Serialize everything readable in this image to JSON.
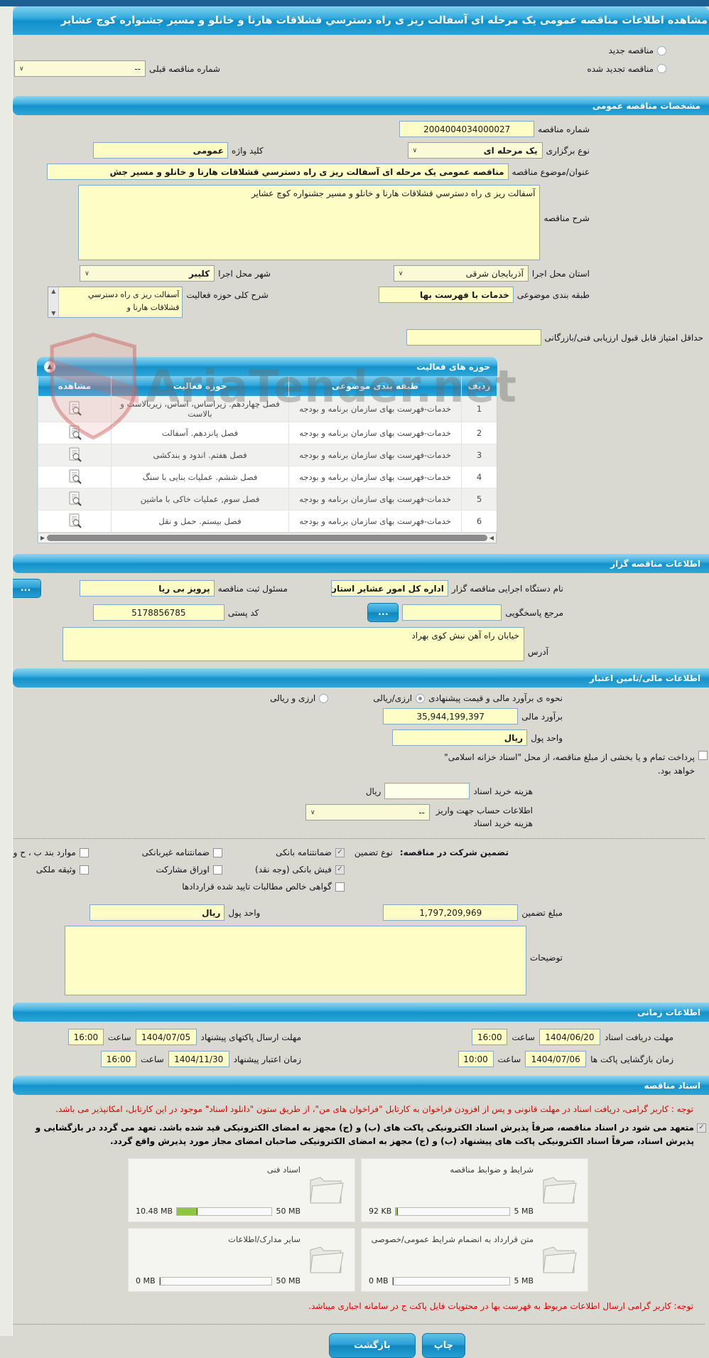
{
  "window": {
    "title": "مشاهده اطلاعات مناقصه عمومی یک مرحله ای آسفالت ریز ی راه دسترسي قشلاقات هارنا و خانلو و مسیر جشنواره کوچ عشایر"
  },
  "watermark": "AriaTender.net",
  "top_options": {
    "new_label": "مناقصه جدید",
    "renewed_label": "مناقصه تجدید شده",
    "previous_number_label": "شماره مناقصه قبلی",
    "previous_number_value": "--"
  },
  "general": {
    "header": "مشخصات مناقصه عمومی",
    "number_label": "شماره مناقصه",
    "number_value": "2004004034000027",
    "type_label": "نوع برگزاری",
    "type_value": "یک مرحله ای",
    "keyword_label": "کلید واژه",
    "keyword_value": "عمومی",
    "subject_label": "عنوان/موضوع مناقصه",
    "subject_value": "مناقصه عمومی یک مرحله ای آسفالت ریز ی راه دسترسي قشلاقات هارنا و خانلو و مسیر جش",
    "desc_label": "شرح مناقصه",
    "desc_value": "آسفالت ریز ی راه دسترسي قشلاقات هارنا و خانلو و مسیر جشنواره کوچ عشایر",
    "province_label": "استان محل اجرا",
    "province_value": "آذربایجان شرقی",
    "city_label": "شهر محل اجرا",
    "city_value": "کلیبر",
    "category_label": "طبقه بندی موضوعی",
    "category_value": "خدمات با فهرست بها",
    "scope_label": "شرح کلی حوزه فعالیت",
    "scope_value": "آسفالت ریز ی راه دسترسي قشلاقات هارنا و",
    "min_score_label": "حداقل امتیاز قابل قبول ارزیابی فنی/بازرگانی"
  },
  "activity_table": {
    "header": "حوزه های فعالیت",
    "columns": [
      "ردیف",
      "طبقه بندی موضوعی",
      "حوزه فعالیت",
      "مشاهده"
    ],
    "rows": [
      {
        "index": "1",
        "category": "خدمات-فهرست بهای سازمان برنامه و بودجه",
        "activity": "فصل چهاردهم. زیراساس، اساس، زیربالاست و بالاست"
      },
      {
        "index": "2",
        "category": "خدمات-فهرست بهای سازمان برنامه و بودجه",
        "activity": "فصل پانزدهم. آسفالت"
      },
      {
        "index": "3",
        "category": "خدمات-فهرست بهای سازمان برنامه و بودجه",
        "activity": "فصل هفتم. اندود و بندکشی"
      },
      {
        "index": "4",
        "category": "خدمات-فهرست بهای سازمان برنامه و بودجه",
        "activity": "فصل ششم. عملیات بنایی با سنگ"
      },
      {
        "index": "5",
        "category": "خدمات-فهرست بهای سازمان برنامه و بودجه",
        "activity": "فصل سوم, عملیات خاکی با ماشین"
      },
      {
        "index": "6",
        "category": "خدمات-فهرست بهای سازمان برنامه و بودجه",
        "activity": "فصل بیستم. حمل و نقل"
      }
    ]
  },
  "organizer": {
    "header": "اطلاعات مناقصه گزار",
    "agency_label": "نام دستگاه اجرایی مناقصه گزار",
    "agency_value": "اداره کل امور عشایر استان",
    "registrar_label": "مسئول ثبت مناقصه",
    "registrar_value": "پرویز بی ریا",
    "browse_label": "...",
    "reply_label": "مرجع پاسخگویی",
    "reply_value": "",
    "postal_label": "کد پستی",
    "postal_value": "5178856785",
    "address_label": "آدرس",
    "address_value": "خیابان راه آهن نبش کوی بهراد"
  },
  "financial": {
    "header": "اطلاعات مالی/تامین اعتبار",
    "estimate_method_label": "نحوه ی برآورد مالی و قیمت پیشنهادی",
    "radio_rial": {
      "label": "ارزی/ریالی",
      "checked": true
    },
    "radio_both": {
      "label": "ارزی و ریالی",
      "checked": false
    },
    "estimate_label": "برآورد مالی",
    "estimate_value": "35,944,199,397",
    "currency_label": "واحد پول",
    "currency_value": "ریال",
    "treasury_note": "پرداخت تمام و یا بخشی از مبلغ مناقصه، از محل \"اسناد خزانه اسلامی\" خواهد بود.",
    "doc_fee_label": "هزینه خرید اسناد",
    "doc_fee_unit": "ریال",
    "account_label": "اطلاعات حساب جهت واریز هزینه خرید اسناد",
    "account_value": "--",
    "guarantee_label": "تضمین شرکت در مناقصه:",
    "guarantee_type_label": "نوع تضمین",
    "guarantee_options": [
      {
        "label": "ضمانتنامه بانکی",
        "checked": true
      },
      {
        "label": "ضمانتنامه غیربانکی",
        "checked": false
      },
      {
        "label": "موارد بند ب ، ح و خ آیین نامه تضامین",
        "checked": false
      },
      {
        "label": "فیش بانکی (وجه نقد)",
        "checked": true
      },
      {
        "label": "اوراق مشارکت",
        "checked": false
      },
      {
        "label": "وثیقه ملکی",
        "checked": false
      },
      {
        "label": "گواهی خالص مطالبات تایید شده قراردادها",
        "checked": false
      }
    ],
    "guarantee_amount_label": "مبلغ تضمین",
    "guarantee_amount_value": "1,797,209,969",
    "guarantee_currency_label": "واحد پول",
    "guarantee_currency_value": "ریال",
    "notes_label": "توضیحات"
  },
  "schedule": {
    "header": "اطلاعات زمانی",
    "time_label": "ساعت",
    "items": [
      {
        "label": "مهلت دریافت اسناد",
        "date": "1404/06/20",
        "time": "16:00"
      },
      {
        "label": "مهلت ارسال پاکتهای پیشنهاد",
        "date": "1404/07/05",
        "time": "16:00"
      },
      {
        "label": "زمان بازگشایی پاکت ها",
        "date": "1404/07/06",
        "time": "10:00"
      },
      {
        "label": "زمان اعتبار پیشنهاد",
        "date": "1404/11/30",
        "time": "16:00"
      }
    ]
  },
  "documents": {
    "header": "اسناد مناقصه",
    "notice_red": "توجه : کاربر گرامی، دریافت اسناد در مهلت قانونی و پس از افزودن فراخوان به کارتابل \"فراخوان های من\"، از طریق ستون \"دانلود اسناد\" موجود در این کارتابل، امکانپذیر می باشد.",
    "commitment": {
      "checked": true,
      "text": "متعهد می شود در اسناد مناقصه، صرفاً پذیرش اسناد الکترونیکی پاکت های (ب) و (ج) مجهز به امضای الکترونیکی قید شده باشد. تعهد می گردد در بازگشایی و پذیرش اسناد، صرفاً اسناد الکترونیکی پاکت های پیشنهاد (ب) و (ج) مجهز به امضای الکترونیکی صاحبان امضای مجاز مورد پذیرش واقع گردد."
    },
    "cards": [
      {
        "label": "شرایط و ضوابط مناقصه",
        "used": "92 KB",
        "max": "5 MB",
        "fill_percent": 2
      },
      {
        "label": "اسناد فنی",
        "used": "10.48 MB",
        "max": "50 MB",
        "fill_percent": 22
      },
      {
        "label": "متن قرارداد به انضمام شرایط عمومی/خصوصی",
        "used": "0 MB",
        "max": "5 MB",
        "fill_percent": 0
      },
      {
        "label": "سایر مدارک/اطلاعات",
        "used": "0 MB",
        "max": "50 MB",
        "fill_percent": 0
      }
    ],
    "notice_bottom": "توجه: کاربر گرامی ارسال اطلاعات مربوط به فهرست بها در محتویات فایل پاکت ج در سامانه اجباری میباشد."
  },
  "footer": {
    "print_label": "چاپ",
    "back_label": "بازگشت"
  }
}
